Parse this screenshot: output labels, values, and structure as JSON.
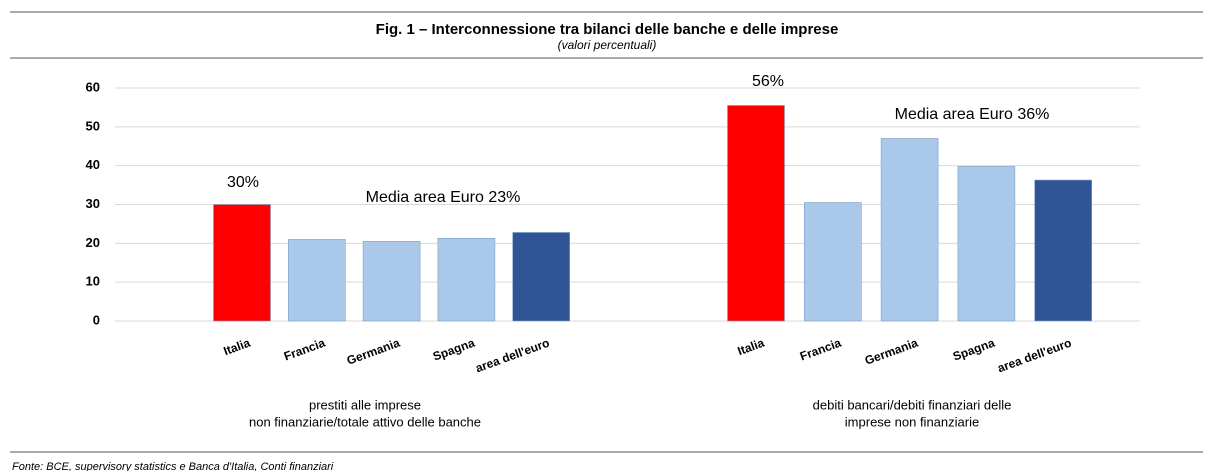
{
  "chart_data": {
    "type": "bar",
    "title": "Fig. 1 – Interconnessione tra bilanci delle banche e delle imprese",
    "subtitle": "(valori percentuali)",
    "ylim": [
      0,
      60
    ],
    "yticks": [
      0,
      10,
      20,
      30,
      40,
      50,
      60
    ],
    "grid": true,
    "groups": [
      {
        "name": [
          "prestiti alle imprese",
          "non finanziarie/totale attivo delle banche"
        ],
        "categories": [
          "Italia",
          "Francia",
          "Germania",
          "Spagna",
          "area dell'euro"
        ],
        "values": [
          30,
          21,
          20.5,
          21.3,
          22.8
        ],
        "colors": [
          "#ff0000",
          "#a9c8ea",
          "#a9c8ea",
          "#a9c8ea",
          "#2f5597"
        ]
      },
      {
        "name": [
          "debiti bancari/debiti finanziari delle",
          "imprese non finanziarie"
        ],
        "categories": [
          "Italia",
          "Francia",
          "Germania",
          "Spagna",
          "area dell'euro"
        ],
        "values": [
          55.5,
          30.5,
          47,
          39.8,
          36.3
        ],
        "colors": [
          "#ff0000",
          "#a9c8ea",
          "#a9c8ea",
          "#a9c8ea",
          "#2f5597"
        ]
      }
    ],
    "annotations": [
      "30%",
      "Media area Euro 23%",
      "56%",
      "Media area Euro 36%"
    ],
    "source": "Fonte: BCE, supervisory statistics e Banca d'Italia, Conti finanziari"
  }
}
